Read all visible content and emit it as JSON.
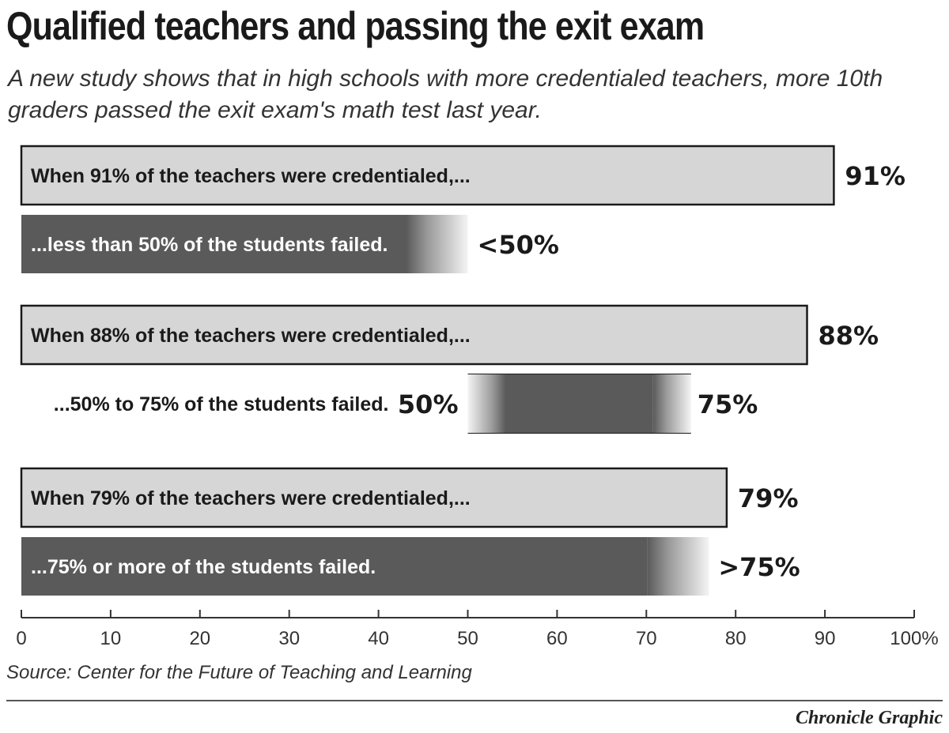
{
  "title": "Qualified teachers and passing the exit exam",
  "subtitle": "A new study shows that in high schools with more credentialed teachers, more 10th graders passed the exit exam's math test last year.",
  "source": "Source: Center for the Future of Teaching and Learning",
  "credit": "Chronicle Graphic",
  "colors": {
    "teacher_bar": "#d6d6d6",
    "student_bar": "#5a5a5a",
    "text": "#1a1a1a",
    "axis": "#333333"
  },
  "chart_data": {
    "type": "bar",
    "orientation": "horizontal",
    "title": "Qualified teachers and passing the exit exam",
    "xlim": [
      0,
      100
    ],
    "x_ticks": [
      0,
      10,
      20,
      30,
      40,
      50,
      60,
      70,
      80,
      90,
      100
    ],
    "x_tick_labels": [
      "0",
      "10",
      "20",
      "30",
      "40",
      "50",
      "60",
      "70",
      "80",
      "90",
      "100%"
    ],
    "grid": false,
    "legend": "none",
    "groups": [
      {
        "teachers": {
          "label": "When 91% of the teachers were credentialed,...",
          "value": 91,
          "value_label": "91%"
        },
        "students": {
          "label": "...less than 50% of the students failed.",
          "range": [
            0,
            50
          ],
          "value_label": "<50%"
        }
      },
      {
        "teachers": {
          "label": "When 88% of the teachers were credentialed,...",
          "value": 88,
          "value_label": "88%"
        },
        "students": {
          "label": "...50% to 75% of the students failed.",
          "range": [
            50,
            75
          ],
          "low_label": "50%",
          "high_label": "75%"
        }
      },
      {
        "teachers": {
          "label": "When 79% of the teachers were credentialed,...",
          "value": 79,
          "value_label": "79%"
        },
        "students": {
          "label": "...75% or more of the students failed.",
          "range": [
            0,
            77
          ],
          "value_label": ">75%"
        }
      }
    ]
  }
}
